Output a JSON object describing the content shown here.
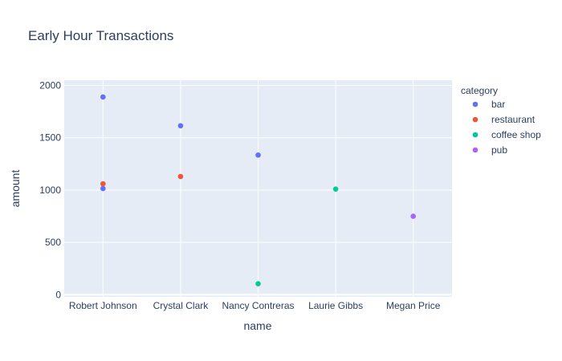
{
  "chart_data": {
    "type": "scatter",
    "title": "Early Hour Transactions",
    "xlabel": "name",
    "ylabel": "amount",
    "categories": [
      "Robert Johnson",
      "Crystal Clark",
      "Nancy Contreras",
      "Laurie Gibbs",
      "Megan Price"
    ],
    "ylim": [
      -20,
      2050
    ],
    "yticks": [
      0,
      500,
      1000,
      1500,
      2000
    ],
    "grid": true,
    "legend": {
      "title": "category",
      "placement": "right"
    },
    "series": [
      {
        "name": "bar",
        "color": "#636efa",
        "points": [
          {
            "x": "Robert Johnson",
            "y": 1890
          },
          {
            "x": "Robert Johnson",
            "y": 1015
          },
          {
            "x": "Crystal Clark",
            "y": 1615
          },
          {
            "x": "Nancy Contreras",
            "y": 1335
          }
        ]
      },
      {
        "name": "restaurant",
        "color": "#ef553b",
        "points": [
          {
            "x": "Robert Johnson",
            "y": 1060
          },
          {
            "x": "Crystal Clark",
            "y": 1130
          }
        ]
      },
      {
        "name": "coffee shop",
        "color": "#00cc96",
        "points": [
          {
            "x": "Nancy Contreras",
            "y": 105
          },
          {
            "x": "Laurie Gibbs",
            "y": 1010
          }
        ]
      },
      {
        "name": "pub",
        "color": "#ab63fa",
        "points": [
          {
            "x": "Megan Price",
            "y": 750
          }
        ]
      }
    ]
  },
  "colors": {
    "plot_background": "#e5ecf6",
    "gridline": "#ffffff",
    "text": "#2a3f5f"
  }
}
